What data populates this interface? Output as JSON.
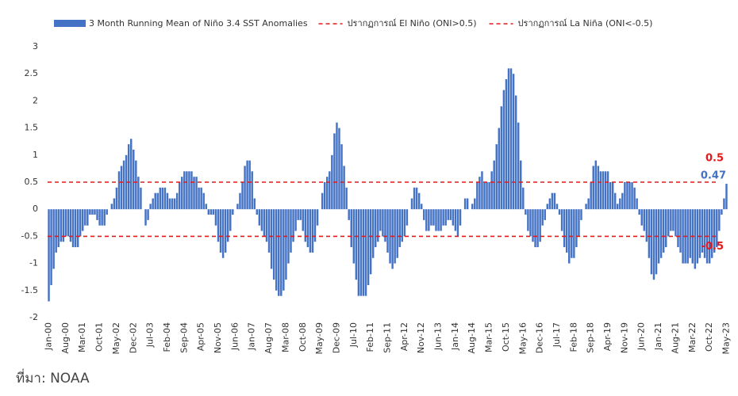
{
  "chart_data": {
    "type": "bar",
    "source": "ที่มา: NOAA",
    "ylim": [
      -2,
      3
    ],
    "yticks": [
      -2,
      -1.5,
      -1,
      -0.5,
      0,
      0.5,
      1,
      1.5,
      2,
      2.5,
      3
    ],
    "grid": false,
    "legend": "top",
    "categories": [
      "Jan-00",
      null,
      null,
      null,
      null,
      null,
      null,
      "Aug-00",
      null,
      null,
      null,
      null,
      null,
      null,
      "Mar-01",
      null,
      null,
      null,
      null,
      null,
      null,
      "Oct-01",
      null,
      null,
      null,
      null,
      null,
      null,
      "May-02",
      null,
      null,
      null,
      null,
      null,
      null,
      "Dec-02",
      null,
      null,
      null,
      null,
      null,
      null,
      "Jul-03",
      null,
      null,
      null,
      null,
      null,
      null,
      "Feb-04",
      null,
      null,
      null,
      null,
      null,
      null,
      "Sep-04",
      null,
      null,
      null,
      null,
      null,
      null,
      "Apr-05",
      null,
      null,
      null,
      null,
      null,
      null,
      "Nov-05",
      null,
      null,
      null,
      null,
      null,
      null,
      "Jun-06",
      null,
      null,
      null,
      null,
      null,
      null,
      "Jan-07",
      null,
      null,
      null,
      null,
      null,
      null,
      "Aug-07",
      null,
      null,
      null,
      null,
      null,
      null,
      "Mar-08",
      null,
      null,
      null,
      null,
      null,
      null,
      "Oct-08",
      null,
      null,
      null,
      null,
      null,
      null,
      "May-09",
      null,
      null,
      null,
      null,
      null,
      null,
      "Dec-09",
      null,
      null,
      null,
      null,
      null,
      null,
      "Jul-10",
      null,
      null,
      null,
      null,
      null,
      null,
      "Feb-11",
      null,
      null,
      null,
      null,
      null,
      null,
      "Sep-11",
      null,
      null,
      null,
      null,
      null,
      null,
      "Apr-12",
      null,
      null,
      null,
      null,
      null,
      null,
      "Nov-12",
      null,
      null,
      null,
      null,
      null,
      null,
      "Jun-13",
      null,
      null,
      null,
      null,
      null,
      null,
      "Jan-14",
      null,
      null,
      null,
      null,
      null,
      null,
      "Aug-14",
      null,
      null,
      null,
      null,
      null,
      null,
      "Mar-15",
      null,
      null,
      null,
      null,
      null,
      null,
      "Oct-15",
      null,
      null,
      null,
      null,
      null,
      null,
      "May-16",
      null,
      null,
      null,
      null,
      null,
      null,
      "Dec-16",
      null,
      null,
      null,
      null,
      null,
      null,
      "Jul-17",
      null,
      null,
      null,
      null,
      null,
      null,
      "Feb-18",
      null,
      null,
      null,
      null,
      null,
      null,
      "Sep-18",
      null,
      null,
      null,
      null,
      null,
      null,
      "Apr-19",
      null,
      null,
      null,
      null,
      null,
      null,
      "Nov-19",
      null,
      null,
      null,
      null,
      null,
      null,
      "Jun-20",
      null,
      null,
      null,
      null,
      null,
      null,
      "Jan-21",
      null,
      null,
      null,
      null,
      null,
      null,
      "Aug-21",
      null,
      null,
      null,
      null,
      null,
      null,
      "Mar-22",
      null,
      null,
      null,
      null,
      null,
      null,
      "Oct-22",
      null,
      null,
      null,
      null,
      null,
      null,
      "May-23"
    ],
    "series": [
      {
        "name": "3 Month Running Mean of Niño 3.4 SST Anomalies",
        "color": "#4472c4",
        "values": [
          -1.7,
          -1.4,
          -1.1,
          -0.8,
          -0.7,
          -0.6,
          -0.6,
          -0.5,
          -0.5,
          -0.6,
          -0.7,
          -0.7,
          -0.7,
          -0.5,
          -0.4,
          -0.3,
          -0.3,
          -0.1,
          -0.1,
          -0.1,
          -0.2,
          -0.3,
          -0.3,
          -0.3,
          -0.1,
          0.0,
          0.1,
          0.2,
          0.4,
          0.7,
          0.8,
          0.9,
          1.0,
          1.2,
          1.3,
          1.1,
          0.9,
          0.6,
          0.4,
          0.0,
          -0.3,
          -0.2,
          0.1,
          0.2,
          0.3,
          0.3,
          0.4,
          0.4,
          0.4,
          0.3,
          0.2,
          0.2,
          0.2,
          0.3,
          0.5,
          0.6,
          0.7,
          0.7,
          0.7,
          0.7,
          0.6,
          0.6,
          0.4,
          0.4,
          0.3,
          0.1,
          -0.1,
          -0.1,
          -0.1,
          -0.3,
          -0.6,
          -0.8,
          -0.9,
          -0.8,
          -0.6,
          -0.4,
          -0.1,
          0.0,
          0.1,
          0.3,
          0.5,
          0.8,
          0.9,
          0.9,
          0.7,
          0.2,
          -0.1,
          -0.3,
          -0.4,
          -0.5,
          -0.6,
          -0.8,
          -1.1,
          -1.3,
          -1.5,
          -1.6,
          -1.6,
          -1.5,
          -1.3,
          -1.0,
          -0.8,
          -0.6,
          -0.4,
          -0.2,
          -0.2,
          -0.4,
          -0.6,
          -0.7,
          -0.8,
          -0.8,
          -0.6,
          -0.3,
          0.0,
          0.3,
          0.5,
          0.6,
          0.7,
          1.0,
          1.4,
          1.6,
          1.5,
          1.2,
          0.8,
          0.4,
          -0.2,
          -0.7,
          -1.0,
          -1.3,
          -1.6,
          -1.6,
          -1.6,
          -1.6,
          -1.4,
          -1.2,
          -0.9,
          -0.7,
          -0.6,
          -0.4,
          -0.5,
          -0.6,
          -0.8,
          -1.0,
          -1.1,
          -1.0,
          -0.9,
          -0.7,
          -0.6,
          -0.5,
          -0.3,
          0.0,
          0.2,
          0.4,
          0.4,
          0.3,
          0.1,
          -0.2,
          -0.4,
          -0.4,
          -0.3,
          -0.3,
          -0.4,
          -0.4,
          -0.4,
          -0.3,
          -0.3,
          -0.2,
          -0.2,
          -0.3,
          -0.4,
          -0.5,
          -0.3,
          0.0,
          0.2,
          0.2,
          0.0,
          0.1,
          0.2,
          0.5,
          0.6,
          0.7,
          0.5,
          0.5,
          0.5,
          0.7,
          0.9,
          1.2,
          1.5,
          1.9,
          2.2,
          2.4,
          2.6,
          2.6,
          2.5,
          2.1,
          1.6,
          0.9,
          0.4,
          -0.1,
          -0.4,
          -0.5,
          -0.6,
          -0.7,
          -0.7,
          -0.6,
          -0.3,
          -0.2,
          0.1,
          0.2,
          0.3,
          0.3,
          0.1,
          -0.1,
          -0.4,
          -0.7,
          -0.8,
          -1.0,
          -0.9,
          -0.9,
          -0.7,
          -0.5,
          -0.2,
          0.0,
          0.1,
          0.2,
          0.5,
          0.8,
          0.9,
          0.8,
          0.7,
          0.7,
          0.7,
          0.7,
          0.5,
          0.5,
          0.3,
          0.1,
          0.2,
          0.3,
          0.5,
          0.5,
          0.5,
          0.5,
          0.4,
          0.2,
          -0.1,
          -0.3,
          -0.4,
          -0.6,
          -0.9,
          -1.2,
          -1.3,
          -1.2,
          -1.0,
          -0.9,
          -0.8,
          -0.7,
          -0.5,
          -0.4,
          -0.4,
          -0.5,
          -0.7,
          -0.8,
          -1.0,
          -1.0,
          -1.0,
          -0.9,
          -1.0,
          -1.1,
          -1.0,
          -0.9,
          -0.8,
          -0.9,
          -1.0,
          -1.0,
          -0.9,
          -0.8,
          -0.7,
          -0.4,
          -0.1,
          0.2,
          0.47
        ]
      }
    ],
    "thresholds": [
      {
        "name": "ปรากฏการณ์ El Niño (ONI>0.5)",
        "value": 0.5,
        "color": "#e31a1c"
      },
      {
        "name": "ปรากฏการณ์ La Niña (ONI<-0.5)",
        "value": -0.5,
        "color": "#e31a1c"
      }
    ]
  }
}
